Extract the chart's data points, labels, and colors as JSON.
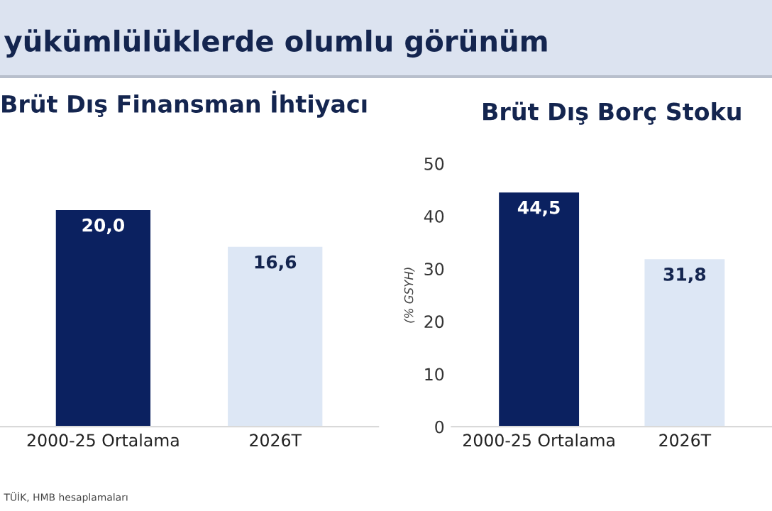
{
  "chart_data": [
    {
      "type": "bar",
      "title": "Brüt Dış Finansman İhtiyacı",
      "categories": [
        "2000-25 Ortalama",
        "2026T"
      ],
      "values": [
        20.0,
        16.6
      ],
      "colors": [
        "#0b2160",
        "#dde7f5"
      ],
      "value_labels": [
        "20,0",
        "16,6"
      ],
      "tick_labels": "x",
      "grid": false,
      "legend": false,
      "annotations": [
        "yükümlülüklerde olumlu görünüm",
        "TÜİK, HMB hesaplamaları"
      ]
    },
    {
      "type": "bar",
      "title": "Brüt Dış Borç Stoku",
      "ylabel": "(% GSYH)",
      "categories": [
        "2000-25 Ortalama",
        "2026T"
      ],
      "values": [
        44.5,
        31.8
      ],
      "colors": [
        "#0b2160",
        "#dde7f5"
      ],
      "value_labels": [
        "44,5",
        "31,8"
      ],
      "ylim": [
        0,
        50
      ],
      "yticks": [
        0,
        10,
        20,
        30,
        40,
        50
      ],
      "grid": false,
      "legend": false
    }
  ]
}
